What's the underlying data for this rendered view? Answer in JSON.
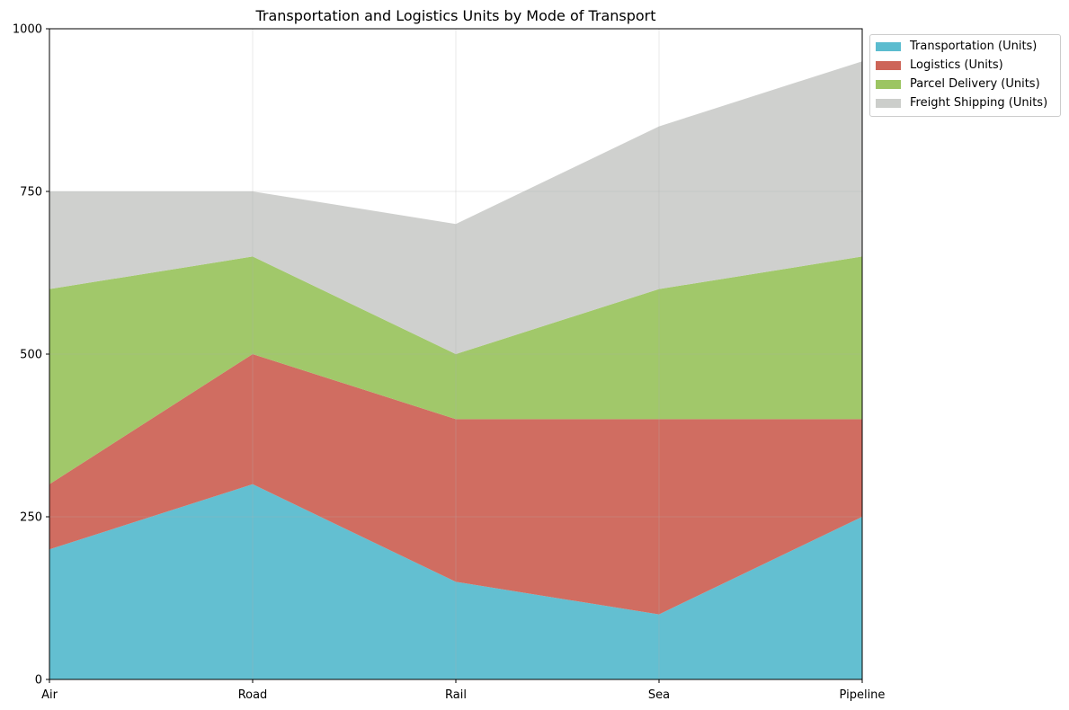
{
  "chart_data": {
    "type": "area",
    "stacked": true,
    "title": "Transportation and Logistics Units by Mode of Transport",
    "xlabel": "",
    "ylabel": "",
    "categories": [
      "Air",
      "Road",
      "Rail",
      "Sea",
      "Pipeline"
    ],
    "ylim": [
      0,
      1000
    ],
    "yticks": [
      0,
      250,
      500,
      750,
      1000
    ],
    "ytick_labels": [
      "0",
      "250",
      "500",
      "750",
      "1000"
    ],
    "grid": true,
    "legend_position": "upper right, outside plot",
    "series": [
      {
        "name": "Transportation (Units)",
        "color": "#5bbccf",
        "values": [
          200,
          300,
          150,
          100,
          250
        ]
      },
      {
        "name": "Logistics (Units)",
        "color": "#cd6558",
        "values": [
          100,
          200,
          250,
          300,
          150
        ]
      },
      {
        "name": "Parcel Delivery (Units)",
        "color": "#9cc562",
        "values": [
          300,
          150,
          100,
          200,
          250
        ]
      },
      {
        "name": "Freight Shipping (Units)",
        "color": "#cccecb",
        "values": [
          150,
          100,
          200,
          250,
          300
        ]
      }
    ]
  }
}
